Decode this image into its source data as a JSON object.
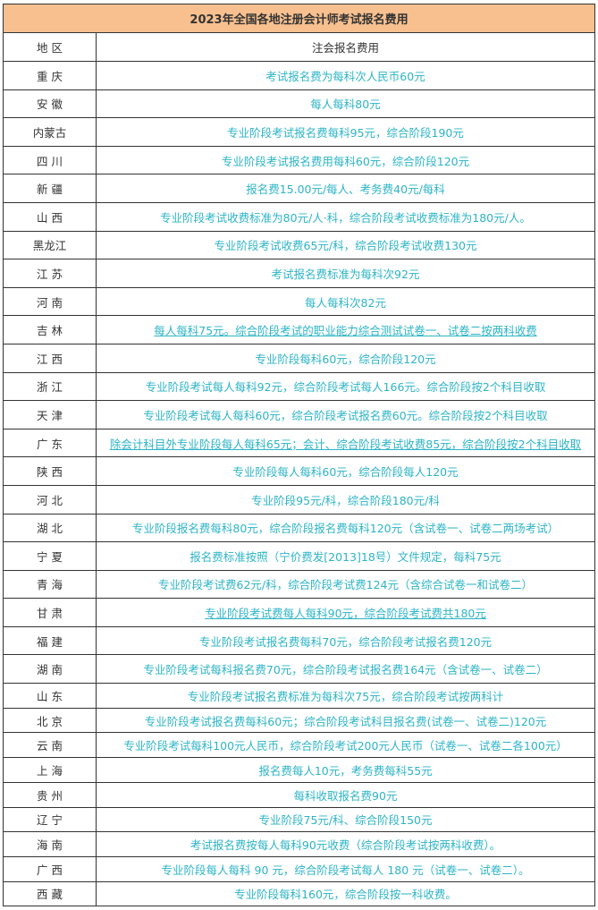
{
  "title": "2023年全国各地注册会计师考试报名费用",
  "columns": [
    "地 区",
    "注会报名费用"
  ],
  "colors": {
    "header_bg": "#f8c08f",
    "fee_text": "#2db4c6",
    "border": "#333333"
  },
  "rows": [
    {
      "region": "重 庆",
      "fee": "考试报名费为每科次人民币60元",
      "link": false
    },
    {
      "region": "安 徽",
      "fee": "每人每科80元",
      "link": false
    },
    {
      "region": "内蒙古",
      "fee": "专业阶段考试报名费每科95元，综合阶段190元",
      "link": false
    },
    {
      "region": "四 川",
      "fee": "专业阶段考试报名费用每科60元，综合阶段120元",
      "link": false
    },
    {
      "region": "新 疆",
      "fee": "报名费15.00元/每人、考务费40元/每科",
      "link": false
    },
    {
      "region": "山 西",
      "fee": "专业阶段考试收费标准为80元/人·科，综合阶段考试收费标准为180元/人。",
      "link": false
    },
    {
      "region": "黑龙江",
      "fee": "专业阶段考试收费65元/科，综合阶段考试收费130元",
      "link": false
    },
    {
      "region": "江 苏",
      "fee": "考试报名费标准为每科次92元",
      "link": false
    },
    {
      "region": "河 南",
      "fee": "每人每科次82元",
      "link": false
    },
    {
      "region": "吉 林",
      "fee": "每人每科75元。综合阶段考试的职业能力综合测试试卷一、试卷二按两科收费",
      "link": true
    },
    {
      "region": "江 西",
      "fee": "专业阶段每科60元，综合阶段120元",
      "link": false
    },
    {
      "region": "浙 江",
      "fee": "专业阶段考试每人每科92元，综合阶段考试每人166元。综合阶段按2个科目收取",
      "link": false
    },
    {
      "region": "天 津",
      "fee": "专业阶段考试每人每科60元，综合阶段考试报名费60元。综合阶段按2个科目收取",
      "link": false
    },
    {
      "region": "广 东",
      "fee": "除会计科目外专业阶段每人每科65元；会计、综合阶段考试收费85元，综合阶段按2个科目收取",
      "link": true
    },
    {
      "region": "陕 西",
      "fee": "专业阶段每人每科60元，综合阶段每人120元",
      "link": false
    },
    {
      "region": "河 北",
      "fee": "专业阶段95元/科，综合阶段180元/科",
      "link": false
    },
    {
      "region": "湖 北",
      "fee": "专业阶段报名费每科80元，综合阶段报名费每科120元（含试卷一、试卷二两场考试）",
      "link": false
    },
    {
      "region": "宁 夏",
      "fee": "报名费标准按照（宁价费发[2013]18号）文件规定，每科75元",
      "link": false
    },
    {
      "region": "青 海",
      "fee": "专业阶段考试费62元/科，综合阶段考试费124元（含综合试卷一和试卷二）",
      "link": false
    },
    {
      "region": "甘 肃",
      "fee": "专业阶段考试费每人每科90元，综合阶段考试费共180元",
      "link": true
    },
    {
      "region": "福 建",
      "fee": "专业阶段考试报名费每科70元，综合阶段考试报名费120元",
      "link": false
    },
    {
      "region": "湖 南",
      "fee": "专业阶段考试每科报名费70元，综合阶段考试报名费164元（含试卷一、试卷二）",
      "link": false
    },
    {
      "region": "山 东",
      "fee": "专业阶段考试报名费标准为每科次75元，综合阶段考试按两科计",
      "link": false
    },
    {
      "region": "北 京",
      "fee": "专业阶段考试报名费每科60元；综合阶段考试科目报名费(试卷一、试卷二)120元",
      "link": false
    },
    {
      "region": "云 南",
      "fee": "专业阶段考试每科100元人民币，综合阶段考试200元人民币（试卷一、试卷二各100元）",
      "link": false
    },
    {
      "region": "上 海",
      "fee": "报名费每人10元，考务费每科55元",
      "link": false
    },
    {
      "region": "贵 州",
      "fee": "每科收取报名费90元",
      "link": false
    },
    {
      "region": "辽 宁",
      "fee": "专业阶段75元/科、综合阶段150元",
      "link": false
    },
    {
      "region": "海 南",
      "fee": "考试报名费按每人每科90元收费（综合阶段考试按两科收费）。",
      "link": false
    },
    {
      "region": "广 西",
      "fee": "专业阶段每人每科 90 元，综合阶段考试每人 180 元（试卷一、试卷二）。",
      "link": false
    },
    {
      "region": "西 藏",
      "fee": "专业阶段每科160元，综合阶段按一科收费。",
      "link": false
    }
  ]
}
